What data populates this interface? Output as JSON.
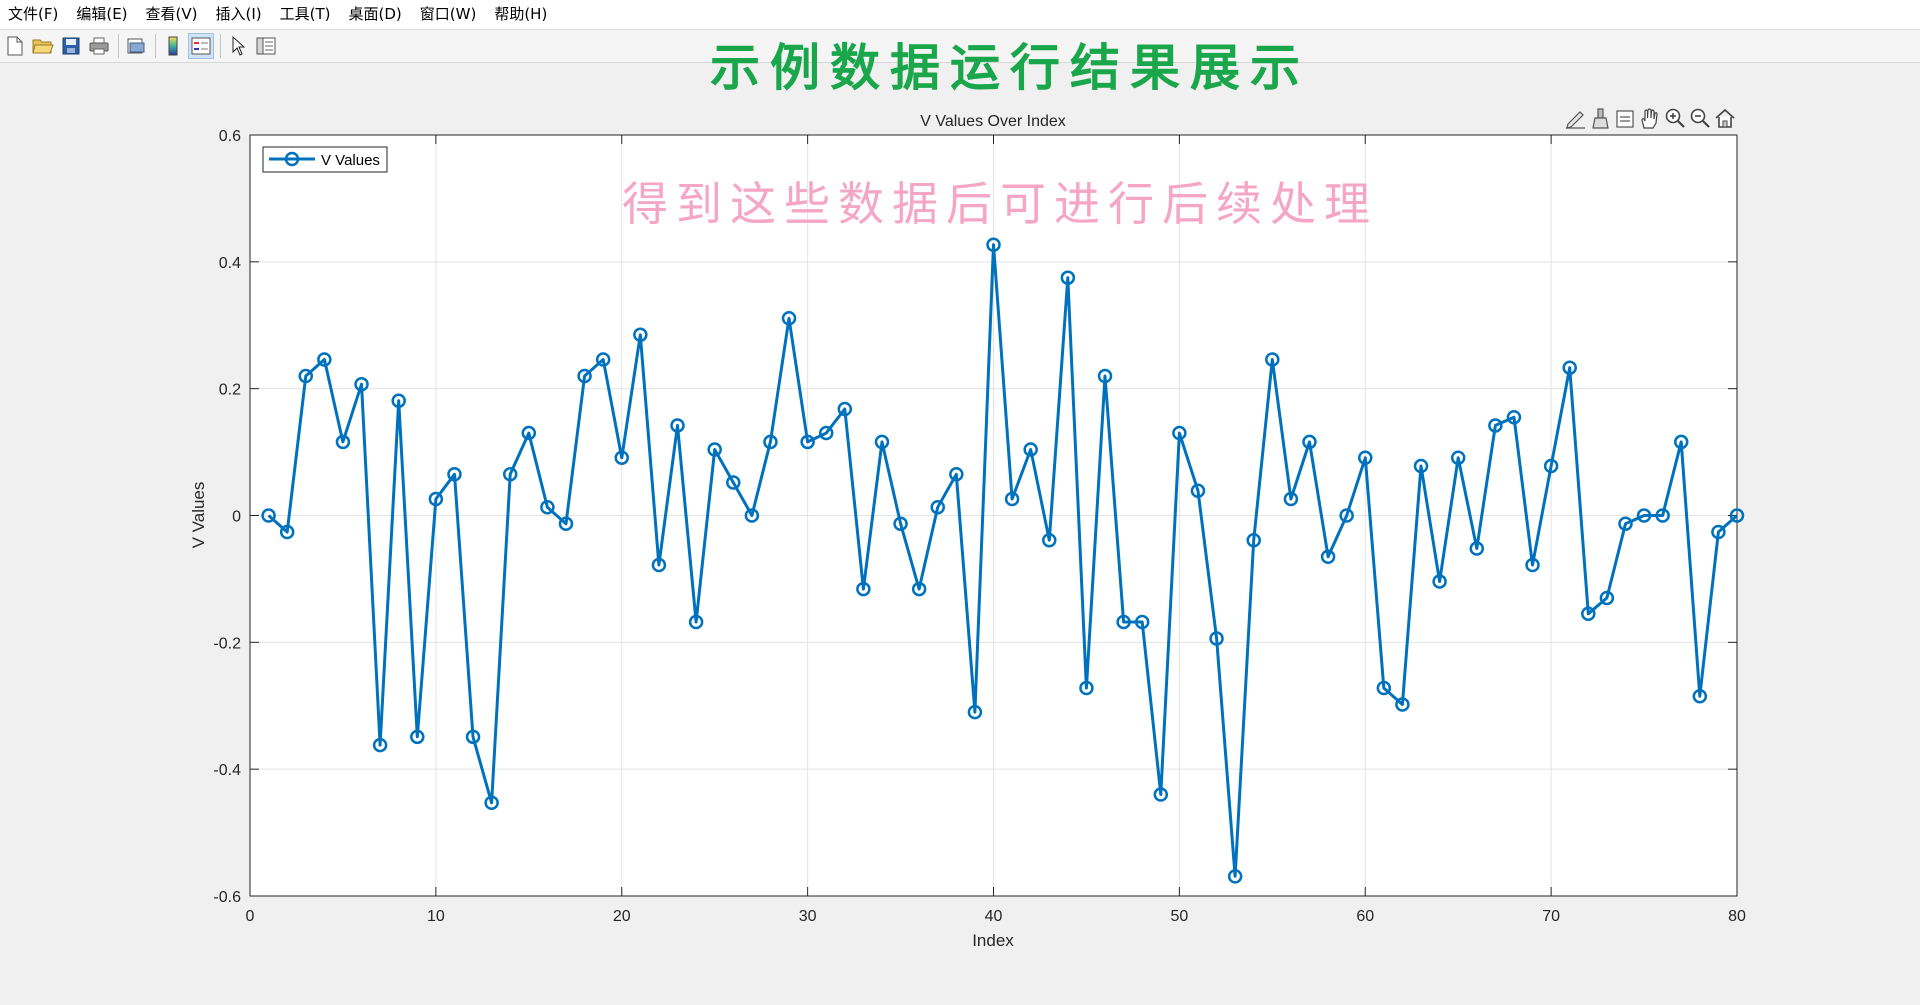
{
  "menu": {
    "items": [
      "文件(F)",
      "编辑(E)",
      "查看(V)",
      "插入(I)",
      "工具(T)",
      "桌面(D)",
      "窗口(W)",
      "帮助(H)"
    ]
  },
  "toolbar": {
    "icons": [
      "new-figure-icon",
      "open-file-icon",
      "save-icon",
      "print-icon",
      "print-preview-icon",
      "colorbar-icon",
      "legend-icon",
      "pointer-icon",
      "property-inspector-icon"
    ]
  },
  "banner": {
    "title": "示例数据运行结果展示",
    "overlay_text": "得到这些数据后可进行后续处理",
    "title_color": "#1aa64a",
    "overlay_color": "#f4a6c4"
  },
  "axes_toolbar": {
    "icons": [
      "edit-plot-icon",
      "brush-icon",
      "data-tips-icon",
      "pan-hand-icon",
      "zoom-in-icon",
      "zoom-out-icon",
      "home-icon"
    ]
  },
  "chart_data": {
    "type": "line",
    "title": "V Values Over Index",
    "xlabel": "Index",
    "ylabel": "V Values",
    "xlim": [
      0,
      80
    ],
    "ylim": [
      -0.6,
      0.6
    ],
    "xticks": [
      "0",
      "10",
      "20",
      "30",
      "40",
      "50",
      "60",
      "70",
      "80"
    ],
    "yticks": [
      "-0.6",
      "-0.4",
      "-0.2",
      "0",
      "0.2",
      "0.4",
      "0.6"
    ],
    "grid": true,
    "legend": "top-left",
    "line_color": "#0072bd",
    "marker": "circle",
    "series": [
      {
        "name": "V Values",
        "x": [
          1,
          2,
          3,
          4,
          5,
          6,
          7,
          8,
          9,
          10,
          11,
          12,
          13,
          14,
          15,
          16,
          17,
          18,
          19,
          20,
          21,
          22,
          23,
          24,
          25,
          26,
          27,
          28,
          29,
          30,
          31,
          32,
          33,
          34,
          35,
          36,
          37,
          38,
          39,
          40,
          41,
          42,
          43,
          44,
          45,
          46,
          47,
          48,
          49,
          50,
          51,
          52,
          53,
          54,
          55,
          56,
          57,
          58,
          59,
          60,
          61,
          62,
          63,
          64,
          65,
          66,
          67,
          68,
          69,
          70,
          71,
          72,
          73,
          74,
          75,
          76,
          77,
          78,
          79,
          80
        ],
        "values": [
          0,
          -0.026,
          0.22,
          0.246,
          0.116,
          0.207,
          -0.362,
          0.181,
          -0.349,
          0.026,
          0.065,
          -0.349,
          -0.453,
          0.065,
          0.13,
          0.013,
          -0.013,
          0.22,
          0.246,
          0.091,
          0.285,
          -0.078,
          0.142,
          -0.168,
          0.104,
          0.052,
          0,
          0.116,
          0.311,
          0.116,
          0.13,
          0.168,
          -0.116,
          0.116,
          -0.013,
          -0.116,
          0.013,
          0.065,
          -0.31,
          0.427,
          0.026,
          0.104,
          -0.039,
          0.375,
          -0.272,
          0.22,
          -0.168,
          -0.168,
          -0.44,
          0.13,
          0.039,
          -0.194,
          -0.569,
          -0.039,
          0.246,
          0.026,
          0.116,
          -0.065,
          0,
          0.091,
          -0.272,
          -0.298,
          0.078,
          -0.104,
          0.091,
          -0.052,
          0.142,
          0.155,
          -0.078,
          0.078,
          0.233,
          -0.155,
          -0.13,
          -0.013,
          0,
          0,
          0.116,
          -0.285,
          -0.026,
          0
        ]
      }
    ]
  }
}
